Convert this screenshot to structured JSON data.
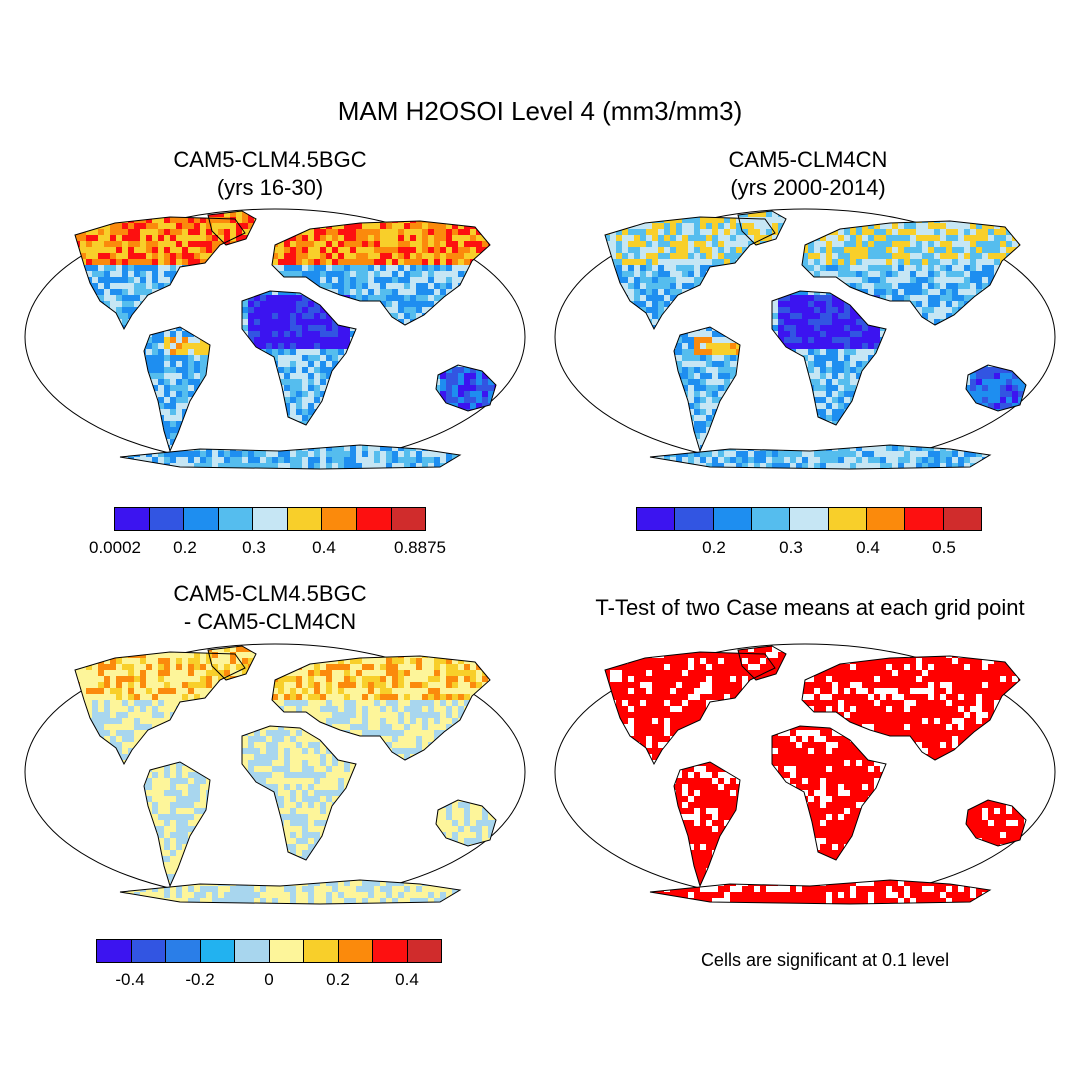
{
  "title": "MAM H2OSOI Level 4 (mm3/mm3)",
  "panels": [
    {
      "title_line1": "CAM5-CLM4.5BGC",
      "title_line2": "(yrs 16-30)",
      "fill": "levels"
    },
    {
      "title_line1": "CAM5-CLM4CN",
      "title_line2": "(yrs 2000-2014)",
      "fill": "levels"
    },
    {
      "title_line1": "CAM5-CLM4.5BGC",
      "title_line2": "- CAM5-CLM4CN",
      "fill": "difference"
    },
    {
      "title_line1": "T-Test of two Case means at each grid point",
      "title_line2": "",
      "fill": "significance"
    }
  ],
  "colorbars": [
    {
      "colors": [
        "#3c14f0",
        "#3255e2",
        "#1e8ef0",
        "#55bdee",
        "#c6e6f4",
        "#f8cf2a",
        "#fb8a0c",
        "#fd1010",
        "#d02c2c"
      ],
      "labels": [
        "0.0002",
        "0.2",
        "0.3",
        "0.4",
        "0.8875"
      ]
    },
    {
      "colors": [
        "#3c14f0",
        "#3255e2",
        "#1e8ef0",
        "#55bdee",
        "#c6e6f4",
        "#f8cf2a",
        "#fb8a0c",
        "#fd1010",
        "#d02c2c"
      ],
      "labels": [
        "0.2",
        "0.3",
        "0.4",
        "0.5"
      ]
    },
    {
      "colors": [
        "#3c14f0",
        "#3255e2",
        "#2a7ee8",
        "#22b2f0",
        "#a8d6ee",
        "#fdf59a",
        "#f8cf2a",
        "#fb8a0c",
        "#fd1010",
        "#d02c2c"
      ],
      "labels": [
        "-0.4",
        "-0.2",
        "0",
        "0.2",
        "0.4"
      ]
    }
  ],
  "significance_note": "Cells are significant at 0.1 level",
  "significance_color": "#ff0000"
}
